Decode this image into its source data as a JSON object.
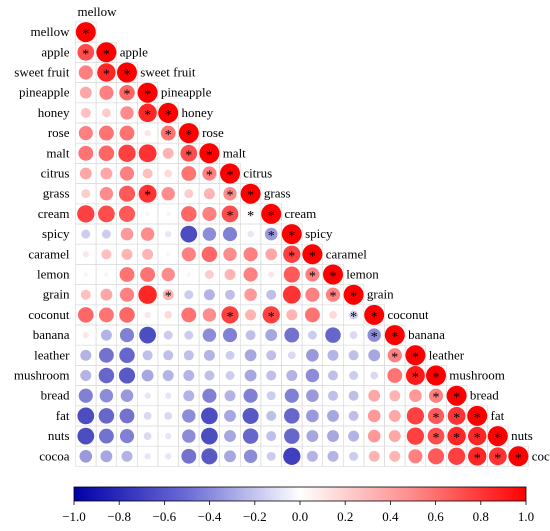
{
  "chart_data": {
    "type": "heatmap",
    "subtype": "lower-triangular correlation matrix, circle size and color by r",
    "variables": [
      "mellow",
      "apple",
      "sweet fruit",
      "pineapple",
      "honey",
      "rose",
      "malt",
      "citrus",
      "grass",
      "cream",
      "spicy",
      "caramel",
      "lemon",
      "grain",
      "coconut",
      "banana",
      "leather",
      "mushroom",
      "bread",
      "fat",
      "nuts",
      "cocoa"
    ],
    "values_lower_triangle": [
      [],
      [
        0.7
      ],
      [
        0.5,
        0.85
      ],
      [
        0.35,
        0.5,
        0.6
      ],
      [
        0.25,
        0.2,
        0.45,
        0.85
      ],
      [
        0.5,
        0.55,
        0.55,
        0.1,
        0.55
      ],
      [
        0.55,
        0.6,
        0.75,
        0.8,
        0.3,
        0.7
      ],
      [
        0.35,
        0.35,
        0.5,
        0.25,
        0.15,
        0.55,
        0.5
      ],
      [
        0.2,
        0.45,
        0.65,
        0.8,
        0.45,
        0.2,
        0.3,
        0.45
      ],
      [
        0.75,
        0.7,
        0.65,
        0.05,
        0.05,
        0.6,
        0.5,
        0.7,
        0.1
      ],
      [
        -0.2,
        -0.2,
        0.4,
        0.45,
        -0.1,
        -0.7,
        -0.45,
        -0.5,
        -0.1,
        -0.4
      ],
      [
        0.1,
        0.25,
        0.3,
        0.3,
        0.05,
        0.5,
        0.6,
        0.45,
        0.5,
        0.35,
        0.75
      ],
      [
        0.05,
        0.05,
        0.55,
        0.55,
        0.45,
        0.05,
        0.2,
        0.3,
        0.5,
        0.1,
        0.65,
        0.5
      ],
      [
        0.25,
        0.35,
        0.5,
        0.85,
        0.3,
        -0.2,
        -0.3,
        -0.25,
        0.4,
        -0.25,
        0.8,
        0.5,
        0.5
      ],
      [
        0.6,
        0.55,
        0.6,
        0.1,
        0.15,
        0.55,
        0.45,
        0.75,
        0.3,
        0.75,
        0.3,
        0.55,
        0.15,
        -0.2
      ],
      [
        0.1,
        -0.3,
        -0.5,
        -0.7,
        -0.2,
        -0.2,
        -0.45,
        -0.5,
        -0.25,
        -0.35,
        -0.55,
        -0.2,
        -0.6,
        -0.15,
        -0.45
      ],
      [
        -0.3,
        -0.55,
        -0.6,
        -0.25,
        -0.25,
        -0.25,
        -0.3,
        -0.2,
        -0.35,
        -0.25,
        -0.15,
        -0.4,
        -0.3,
        -0.25,
        -0.35,
        0.5
      ],
      [
        -0.3,
        -0.6,
        -0.65,
        -0.35,
        -0.3,
        -0.3,
        -0.25,
        -0.2,
        -0.35,
        -0.25,
        -0.3,
        -0.45,
        -0.25,
        -0.2,
        -0.15,
        0.55,
        0.9
      ],
      [
        -0.5,
        -0.45,
        -0.4,
        -0.1,
        -0.1,
        -0.3,
        -0.5,
        -0.3,
        -0.5,
        -0.2,
        -0.5,
        -0.4,
        -0.25,
        -0.25,
        0.35,
        0.3,
        0.4,
        0.5
      ],
      [
        -0.7,
        -0.6,
        -0.55,
        -0.15,
        -0.15,
        -0.45,
        -0.7,
        -0.35,
        -0.65,
        -0.25,
        -0.6,
        -0.4,
        -0.35,
        -0.25,
        0.4,
        0.35,
        0.75,
        0.65,
        0.8
      ],
      [
        -0.7,
        -0.55,
        -0.5,
        -0.15,
        -0.1,
        -0.45,
        -0.7,
        -0.35,
        -0.6,
        -0.25,
        -0.6,
        -0.35,
        -0.35,
        -0.3,
        0.4,
        0.35,
        0.75,
        0.7,
        0.85,
        0.85
      ],
      [
        -0.4,
        -0.35,
        -0.3,
        -0.1,
        -0.1,
        -0.55,
        -0.65,
        -0.35,
        -0.45,
        -0.2,
        -0.75,
        -0.3,
        -0.3,
        -0.2,
        0.3,
        0.3,
        0.5,
        0.65,
        0.75,
        0.85,
        0.8
      ]
    ],
    "significant_cells": [
      [
        1,
        0
      ],
      [
        2,
        1
      ],
      [
        3,
        2
      ],
      [
        4,
        3
      ],
      [
        5,
        4
      ],
      [
        6,
        5
      ],
      [
        7,
        6
      ],
      [
        8,
        7
      ],
      [
        9,
        8
      ],
      [
        10,
        9
      ],
      [
        11,
        10
      ],
      [
        12,
        11
      ],
      [
        13,
        12
      ],
      [
        14,
        13
      ],
      [
        15,
        14
      ],
      [
        16,
        15
      ],
      [
        17,
        16
      ],
      [
        18,
        17
      ],
      [
        19,
        18
      ],
      [
        20,
        19
      ],
      [
        21,
        20
      ],
      [
        8,
        3
      ],
      [
        9,
        7
      ],
      [
        13,
        4
      ],
      [
        14,
        7
      ],
      [
        14,
        9
      ],
      [
        17,
        16
      ],
      [
        18,
        17
      ],
      [
        19,
        17
      ],
      [
        20,
        17
      ],
      [
        20,
        18
      ],
      [
        20,
        19
      ],
      [
        21,
        19
      ]
    ],
    "colorbar": {
      "min": -1.0,
      "max": 1.0,
      "ticks": [
        "−1.0",
        "−0.8",
        "−0.6",
        "−0.4",
        "−0.2",
        "0.0",
        "0.2",
        "0.4",
        "0.6",
        "0.8",
        "1.0"
      ],
      "low_color": "#0000a8",
      "mid_color": "#ffffff",
      "high_color": "#ff0000"
    },
    "significance_marker": "*",
    "grid": true
  }
}
